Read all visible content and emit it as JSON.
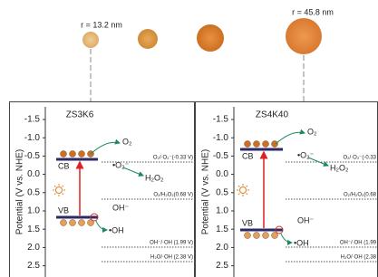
{
  "particles": [
    {
      "label": "r = 13.2 nm"
    },
    {
      "label": null
    },
    {
      "label": null
    },
    {
      "label": "r = 45.8 nm"
    }
  ],
  "panels": [
    {
      "title": "ZS3K6",
      "axis_label": "Potential (V vs. NHE)",
      "ticks": [
        "-1.5",
        "-1.0",
        "-0.5",
        "0.0",
        "0.5",
        "1.0",
        "1.5",
        "2.0",
        "2.5"
      ],
      "cb": "CB",
      "vb": "VB",
      "o2": "O₂",
      "o2_radical": "•O₂⁻",
      "h2o2": "H₂O₂",
      "oh_minus": "OH⁻",
      "oh_radical": "•OH",
      "levels": [
        "O₂/·O₂⁻(-0.33 V)",
        "O₂/H₂O₂(0.68 V)",
        "OH⁻/·OH (1.99 V)",
        "H₂O/·OH (2.38 V)"
      ]
    },
    {
      "title": "ZS4K40",
      "axis_label": "Potential (V vs. NHE)",
      "ticks": [
        "-1.5",
        "-1.0",
        "-0.5",
        "0.0",
        "0.5",
        "1.0",
        "1.5",
        "2.0",
        "2.5"
      ],
      "cb": "CB",
      "vb": "VB",
      "o2": "O₂",
      "o2_radical": "•O₂⁻",
      "h2o2": "H₂O₂",
      "oh_minus": "OH⁻",
      "oh_radical": "•OH",
      "levels": [
        "O₂/·O₂⁻(-0.33",
        "O₂/H₂O₂(0.68",
        "OH⁻/·OH (1.99",
        "H₂O/·OH (2.38"
      ]
    }
  ]
}
